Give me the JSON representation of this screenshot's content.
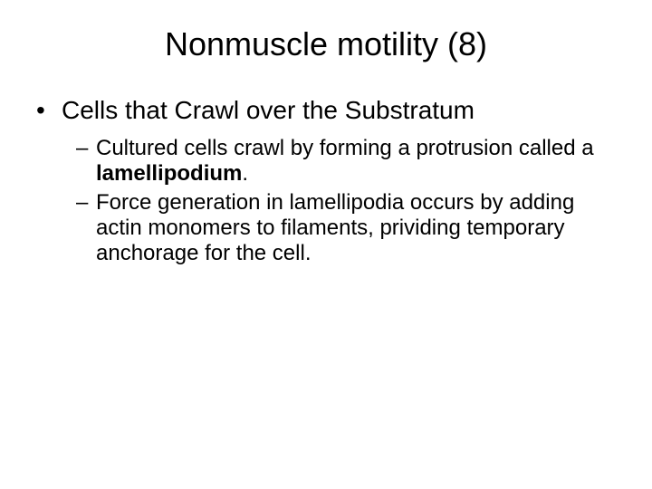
{
  "title": "Nonmuscle motility (8)",
  "bullets": {
    "b1": "Cells that Crawl over the Substratum",
    "b1_0_pre": "Cultured cells crawl by forming a protrusion called a ",
    "b1_0_bold": "lamellipodium",
    "b1_0_post": ".",
    "b1_1": "Force generation in lamellipodia occurs by adding actin monomers to filaments, prividing temporary anchorage for the cell."
  },
  "style": {
    "background": "#ffffff",
    "text_color": "#000000",
    "title_fontsize": 36,
    "level1_fontsize": 28,
    "level2_fontsize": 24,
    "font_family": "Arial"
  }
}
